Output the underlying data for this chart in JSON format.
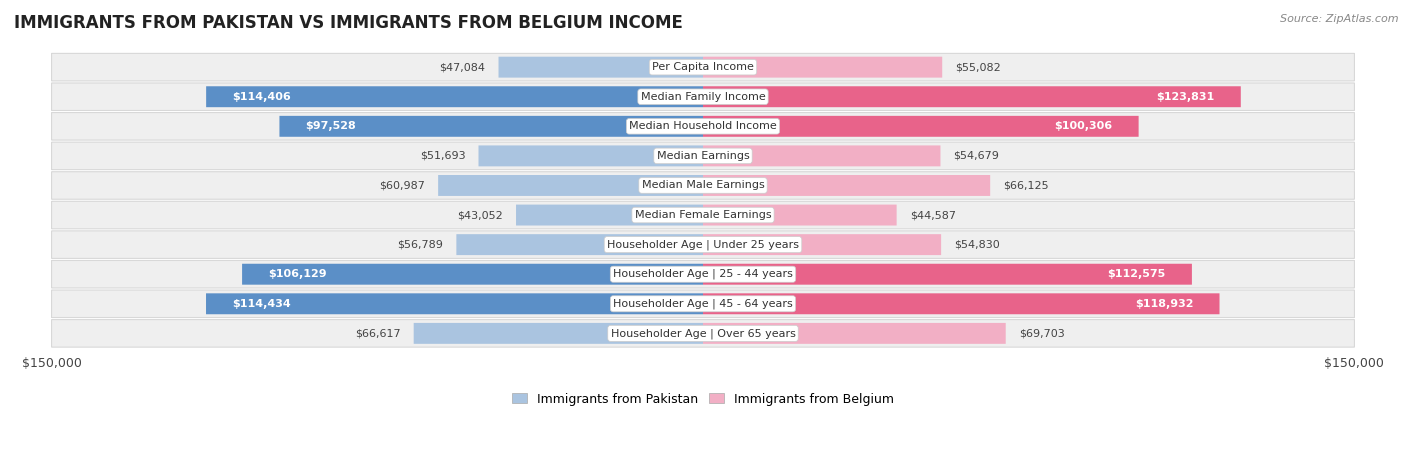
{
  "title": "IMMIGRANTS FROM PAKISTAN VS IMMIGRANTS FROM BELGIUM INCOME",
  "source": "Source: ZipAtlas.com",
  "categories": [
    "Per Capita Income",
    "Median Family Income",
    "Median Household Income",
    "Median Earnings",
    "Median Male Earnings",
    "Median Female Earnings",
    "Householder Age | Under 25 years",
    "Householder Age | 25 - 44 years",
    "Householder Age | 45 - 64 years",
    "Householder Age | Over 65 years"
  ],
  "pakistan_values": [
    47084,
    114406,
    97528,
    51693,
    60987,
    43052,
    56789,
    106129,
    114434,
    66617
  ],
  "belgium_values": [
    55082,
    123831,
    100306,
    54679,
    66125,
    44587,
    54830,
    112575,
    118932,
    69703
  ],
  "pakistan_color_light": "#aac4e0",
  "pakistan_color_dark": "#5b8fc7",
  "belgium_color_light": "#f2afc5",
  "belgium_color_dark": "#e8638a",
  "max_value": 150000,
  "pak_threshold": 80000,
  "bel_threshold": 80000,
  "pakistan_label": "Immigrants from Pakistan",
  "belgium_label": "Immigrants from Belgium",
  "bg_row_color": "#efefef",
  "bg_color": "#ffffff",
  "label_fontsize": 8,
  "cat_fontsize": 8,
  "title_fontsize": 12,
  "source_fontsize": 8
}
